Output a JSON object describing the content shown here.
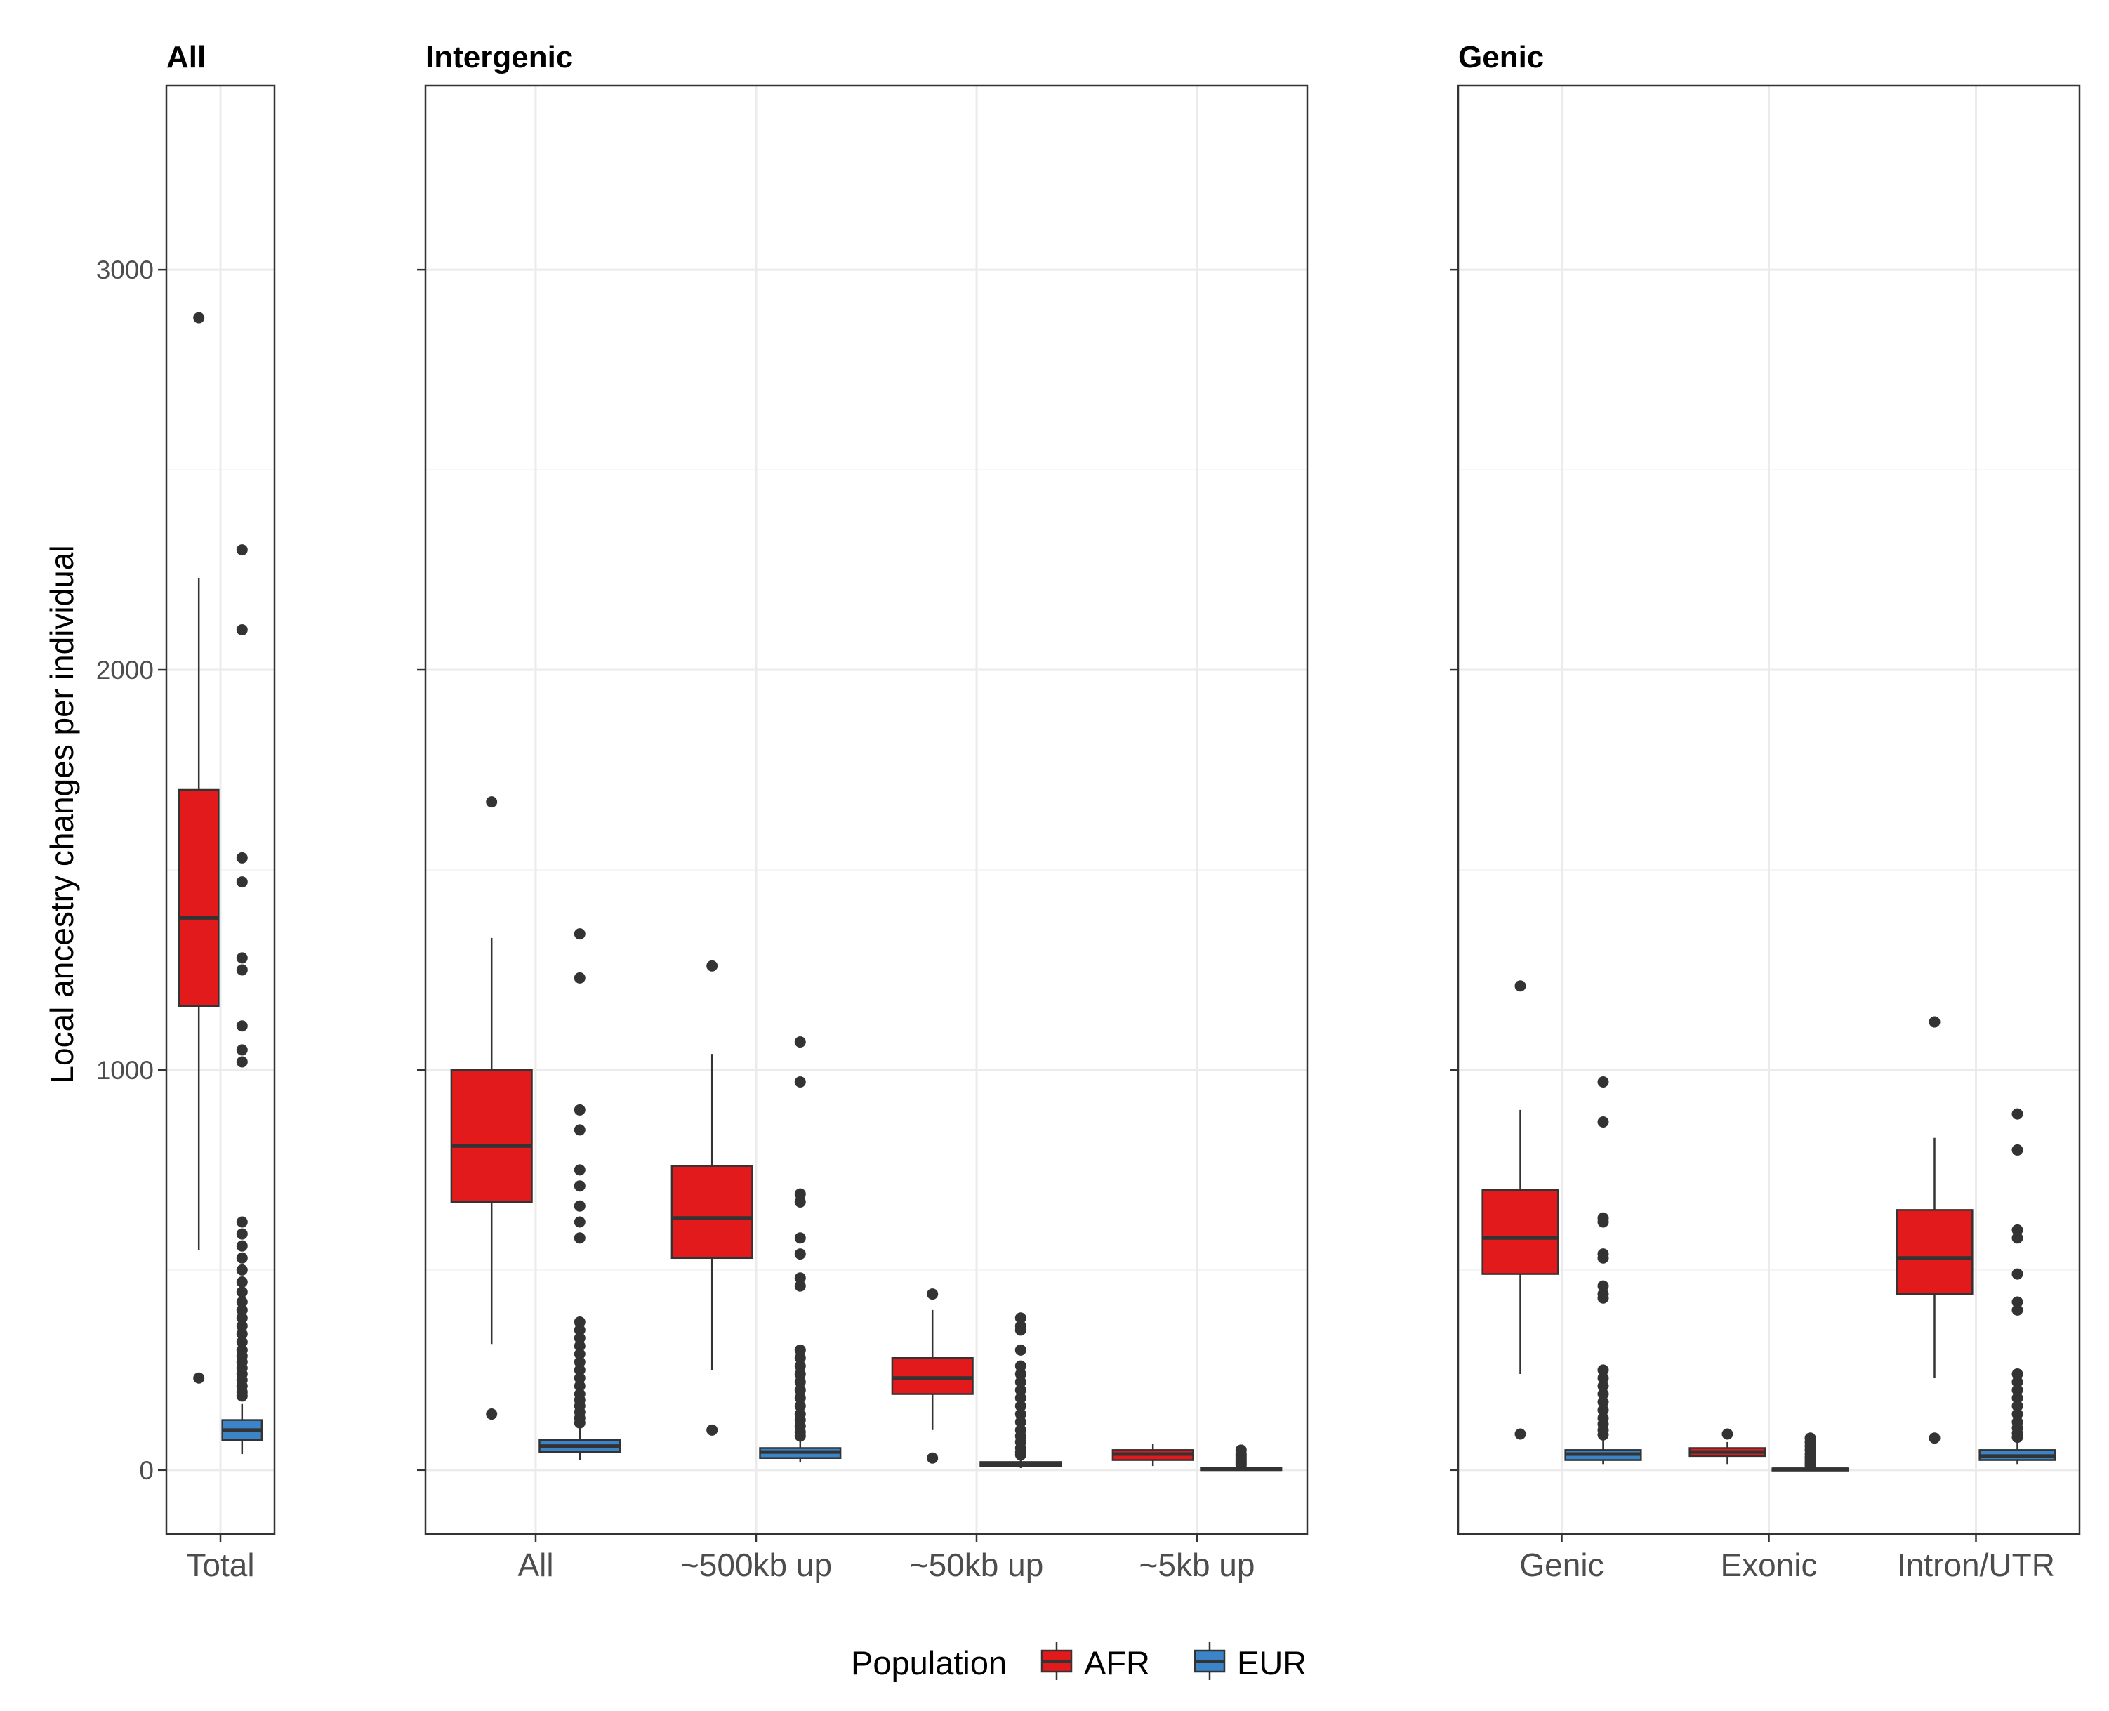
{
  "chart_data": {
    "type": "boxplot",
    "ylabel": "Local ancestry changes per individual",
    "ylim": [
      -160,
      3460
    ],
    "yticks": [
      0,
      1000,
      2000,
      3000
    ],
    "ytick_labels": [
      "0",
      "1000",
      "2000",
      "3000"
    ],
    "grid": true,
    "legend": {
      "title": "Population",
      "position": "bottom",
      "entries": [
        {
          "name": "AFR",
          "color": "#e31a1c"
        },
        {
          "name": "EUR",
          "color": "#3a84c7"
        }
      ]
    },
    "panels": [
      {
        "title": "All",
        "categories": [
          "Total"
        ],
        "series": {
          "AFR": [
            {
              "category": "Total",
              "lower": 550,
              "q1": 1160,
              "median": 1380,
              "q3": 1700,
              "upper": 2230,
              "outliers": [
                2880,
                230
              ]
            }
          ],
          "EUR": [
            {
              "category": "Total",
              "lower": 40,
              "q1": 75,
              "median": 100,
              "q3": 125,
              "upper": 165,
              "outliers": [
                2300,
                2100,
                1530,
                1470,
                1280,
                1250,
                1110,
                1050,
                1020,
                620,
                590,
                560,
                530,
                500,
                470,
                445,
                420,
                400,
                380,
                360,
                340,
                320,
                300,
                285,
                270,
                255,
                240,
                225,
                210,
                195,
                185
              ]
            }
          ]
        }
      },
      {
        "title": "Intergenic",
        "categories": [
          "All",
          "~500kb up",
          "~50kb up",
          "~5kb up"
        ],
        "series": {
          "AFR": [
            {
              "category": "All",
              "lower": 315,
              "q1": 670,
              "median": 810,
              "q3": 1000,
              "upper": 1330,
              "outliers": [
                1670,
                140
              ]
            },
            {
              "category": "~500kb up",
              "lower": 250,
              "q1": 530,
              "median": 630,
              "q3": 760,
              "upper": 1040,
              "outliers": [
                1260,
                100
              ]
            },
            {
              "category": "~50kb up",
              "lower": 100,
              "q1": 190,
              "median": 230,
              "q3": 280,
              "upper": 400,
              "outliers": [
                440,
                30
              ]
            },
            {
              "category": "~5kb up",
              "lower": 10,
              "q1": 25,
              "median": 40,
              "q3": 50,
              "upper": 65,
              "outliers": []
            }
          ],
          "EUR": [
            {
              "category": "All",
              "lower": 25,
              "q1": 45,
              "median": 60,
              "q3": 75,
              "upper": 110,
              "outliers": [
                1340,
                1230,
                900,
                850,
                750,
                710,
                660,
                620,
                580,
                370,
                350,
                330,
                310,
                290,
                270,
                250,
                230,
                210,
                190,
                175,
                160,
                145,
                130,
                118
              ]
            },
            {
              "category": "~500kb up",
              "lower": 20,
              "q1": 30,
              "median": 45,
              "q3": 55,
              "upper": 80,
              "outliers": [
                1070,
                970,
                690,
                670,
                580,
                540,
                480,
                460,
                300,
                280,
                260,
                240,
                220,
                200,
                180,
                160,
                140,
                125,
                110,
                95,
                85
              ]
            },
            {
              "category": "~50kb up",
              "lower": 5,
              "q1": 10,
              "median": 15,
              "q3": 20,
              "upper": 30,
              "outliers": [
                380,
                360,
                350,
                300,
                260,
                240,
                220,
                200,
                180,
                160,
                140,
                120,
                100,
                85,
                70,
                55,
                45,
                38
              ]
            },
            {
              "category": "~5kb up",
              "lower": 0,
              "q1": 0,
              "median": 2,
              "q3": 5,
              "upper": 10,
              "outliers": [
                50,
                40,
                35,
                30,
                25,
                20,
                16,
                12
              ]
            }
          ]
        }
      },
      {
        "title": "Genic",
        "categories": [
          "Genic",
          "Exonic",
          "Intron/UTR"
        ],
        "series": {
          "AFR": [
            {
              "category": "Genic",
              "lower": 240,
              "q1": 490,
              "median": 580,
              "q3": 700,
              "upper": 900,
              "outliers": [
                1210,
                90
              ]
            },
            {
              "category": "Exonic",
              "lower": 15,
              "q1": 35,
              "median": 45,
              "q3": 55,
              "upper": 70,
              "outliers": [
                90
              ]
            },
            {
              "category": "Intron/UTR",
              "lower": 230,
              "q1": 440,
              "median": 530,
              "q3": 650,
              "upper": 830,
              "outliers": [
                1120,
                80
              ]
            }
          ],
          "EUR": [
            {
              "category": "Genic",
              "lower": 15,
              "q1": 25,
              "median": 40,
              "q3": 50,
              "upper": 75,
              "outliers": [
                970,
                870,
                630,
                620,
                540,
                530,
                460,
                440,
                430,
                250,
                230,
                210,
                190,
                170,
                150,
                130,
                115,
                100,
                88
              ]
            },
            {
              "category": "Exonic",
              "lower": 0,
              "q1": 0,
              "median": 2,
              "q3": 4,
              "upper": 8,
              "outliers": [
                80,
                70,
                60,
                50,
                40,
                32,
                25,
                18,
                12
              ]
            },
            {
              "category": "Intron/UTR",
              "lower": 15,
              "q1": 25,
              "median": 35,
              "q3": 50,
              "upper": 70,
              "outliers": [
                890,
                800,
                600,
                580,
                490,
                420,
                400,
                240,
                220,
                200,
                180,
                160,
                140,
                120,
                105,
                92,
                82
              ]
            }
          ]
        }
      }
    ]
  }
}
